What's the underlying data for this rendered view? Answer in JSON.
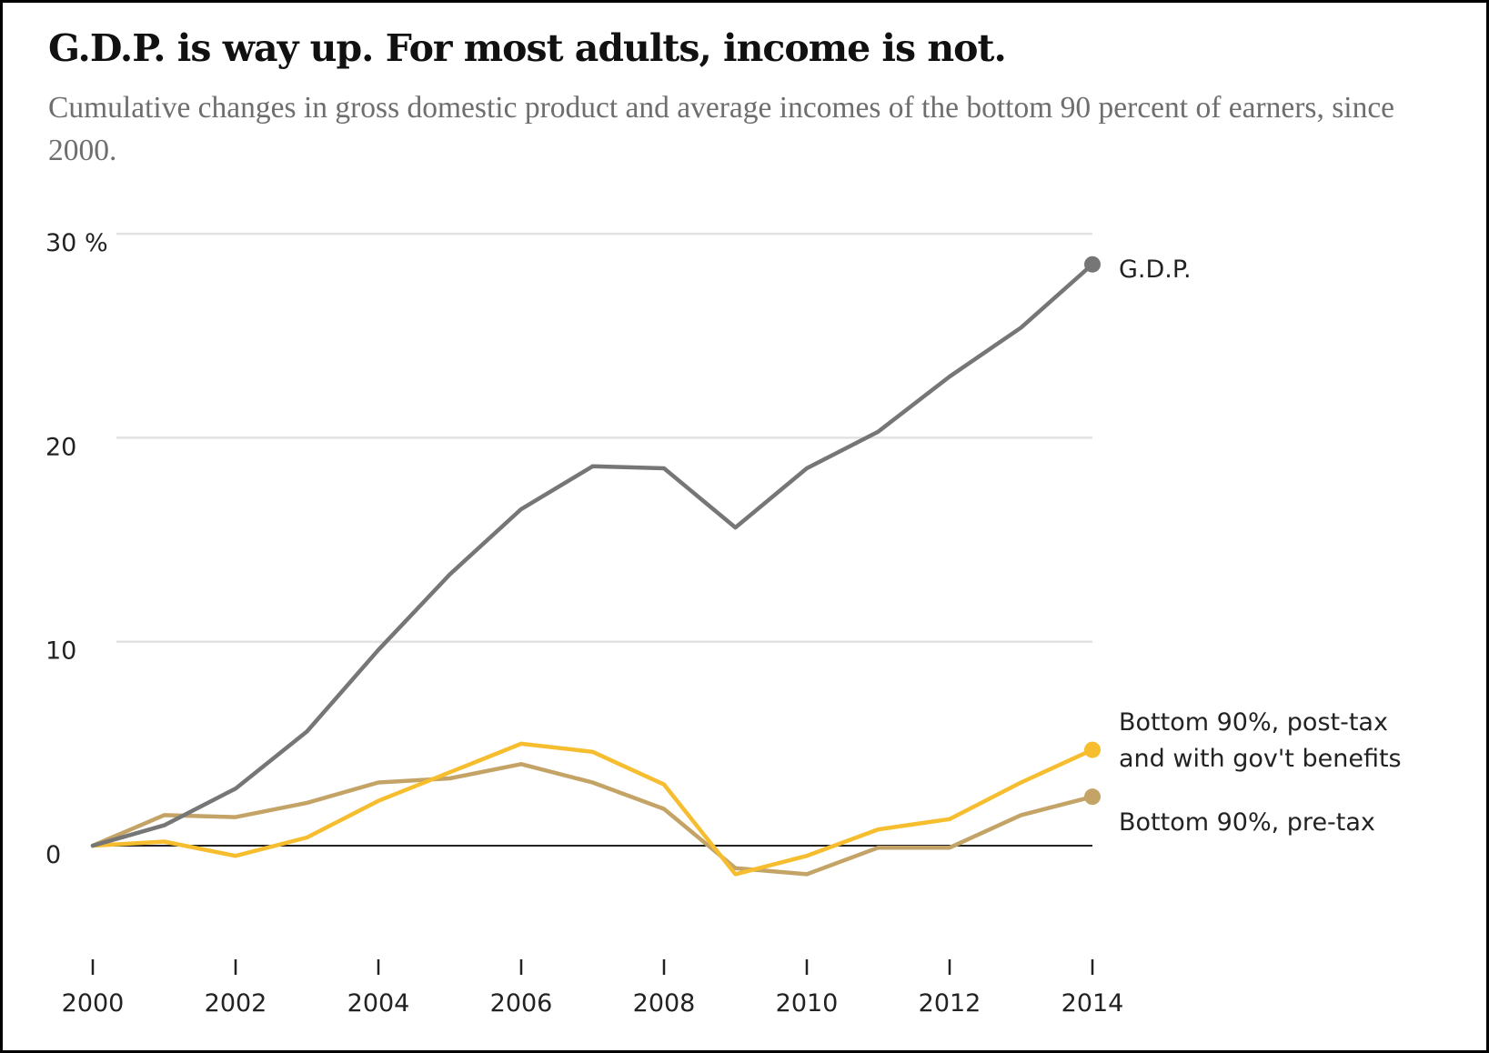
{
  "title": "G.D.P. is way up. For most adults, income is not.",
  "subtitle": "Cumulative changes in gross domestic product and average incomes of the bottom 90 percent of earners, since 2000.",
  "chart_data": {
    "type": "line",
    "title": "G.D.P. is way up. For most adults, income is not.",
    "subtitle": "Cumulative changes in gross domestic product and average incomes of the bottom 90 percent of earners, since 2000.",
    "xlabel": "",
    "ylabel": "",
    "x": [
      2000,
      2001,
      2002,
      2003,
      2004,
      2005,
      2006,
      2007,
      2008,
      2009,
      2010,
      2011,
      2012,
      2013,
      2014
    ],
    "xlim": [
      2000,
      2014
    ],
    "ylim": [
      -5,
      30
    ],
    "x_ticks": [
      "2000",
      "2002",
      "2004",
      "2006",
      "2008",
      "2010",
      "2012",
      "2014"
    ],
    "y_ticks": [
      "30 %",
      "20",
      "10",
      "0"
    ],
    "grid": "horizontal",
    "legend": "direct labels at right end of lines",
    "series": [
      {
        "name": "G.D.P.",
        "color": "#767676",
        "values": [
          0,
          1.0,
          2.8,
          5.6,
          9.6,
          13.3,
          16.5,
          18.6,
          18.5,
          15.6,
          18.5,
          20.3,
          23.0,
          25.4,
          28.5
        ]
      },
      {
        "name": "Bottom 90%, post-tax and with gov't benefits",
        "color": "#f6bd2f",
        "values": [
          0,
          0.2,
          -0.5,
          0.4,
          2.2,
          3.6,
          5.0,
          4.6,
          3.0,
          -1.4,
          -0.5,
          0.8,
          1.3,
          3.1,
          4.7
        ]
      },
      {
        "name": "Bottom 90%, pre-tax",
        "color": "#c4a466",
        "values": [
          0,
          1.5,
          1.4,
          2.1,
          3.1,
          3.3,
          4.0,
          3.1,
          1.8,
          -1.1,
          -1.4,
          -0.1,
          -0.1,
          1.5,
          2.4
        ]
      }
    ],
    "series_labels": [
      {
        "lines": [
          "G.D.P."
        ]
      },
      {
        "lines": [
          "Bottom 90%, post-tax",
          "and with gov't benefits"
        ]
      },
      {
        "lines": [
          "Bottom 90%, pre-tax"
        ]
      }
    ]
  }
}
